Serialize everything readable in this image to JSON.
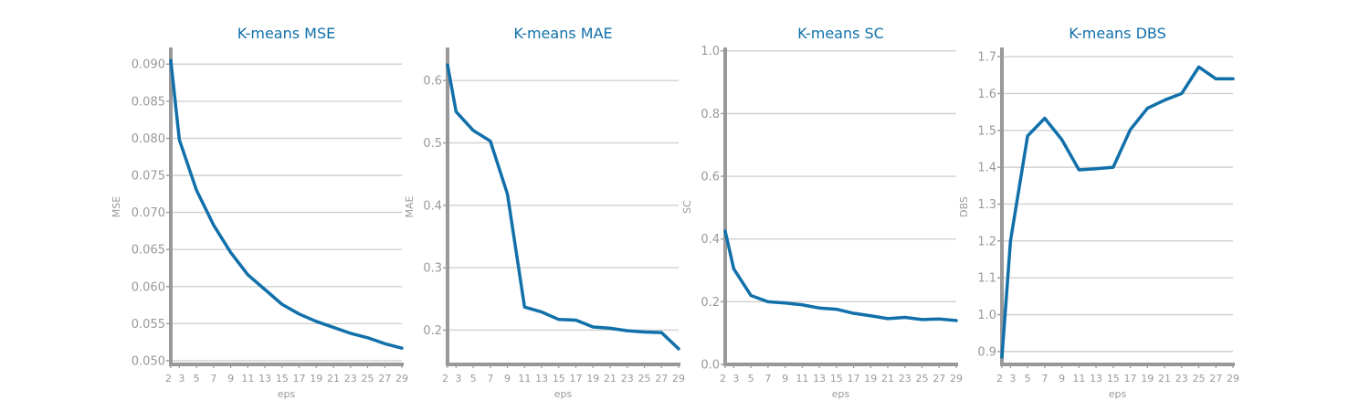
{
  "colors": {
    "line": "#1170aa",
    "title": "#1170aa",
    "axis": "#999999",
    "grid": "#d0d0d0",
    "text": "#999999"
  },
  "chart_data": [
    {
      "type": "line",
      "title": "K-means MSE",
      "xlabel": "eps",
      "ylabel": "MSE",
      "x": [
        2,
        3,
        5,
        7,
        9,
        11,
        13,
        15,
        17,
        19,
        21,
        23,
        25,
        27,
        29
      ],
      "x_ticks": [
        "2",
        "3",
        "5",
        "7",
        "9",
        "11",
        "13",
        "15",
        "17",
        "19",
        "21",
        "23",
        "25",
        "27",
        "29"
      ],
      "y_ticks": [
        "0.050",
        "0.055",
        "0.060",
        "0.065",
        "0.070",
        "0.075",
        "0.080",
        "0.085",
        "0.090"
      ],
      "xlim": [
        2,
        29
      ],
      "ylim": [
        0.0495,
        0.092
      ],
      "grid": true,
      "series": [
        {
          "values": [
            0.0905,
            0.0798,
            0.073,
            0.0683,
            0.0646,
            0.0616,
            0.0596,
            0.0576,
            0.0563,
            0.0553,
            0.0545,
            0.0537,
            0.0531,
            0.0523,
            0.0517
          ]
        }
      ]
    },
    {
      "type": "line",
      "title": "K-means MAE",
      "xlabel": "eps",
      "ylabel": "MAE",
      "x": [
        2,
        3,
        5,
        7,
        9,
        11,
        13,
        15,
        17,
        19,
        21,
        23,
        25,
        27,
        29
      ],
      "x_ticks": [
        "2",
        "3",
        "5",
        "7",
        "9",
        "11",
        "13",
        "15",
        "17",
        "19",
        "21",
        "23",
        "25",
        "27",
        "29"
      ],
      "y_ticks": [
        "0.2",
        "0.3",
        "0.4",
        "0.5",
        "0.6"
      ],
      "xlim": [
        2,
        29
      ],
      "ylim": [
        0.145,
        0.65
      ],
      "grid": true,
      "series": [
        {
          "values": [
            0.625,
            0.55,
            0.52,
            0.503,
            0.418,
            0.237,
            0.229,
            0.217,
            0.216,
            0.205,
            0.203,
            0.199,
            0.197,
            0.196,
            0.17
          ]
        }
      ]
    },
    {
      "type": "line",
      "title": "K-means SC",
      "xlabel": "eps",
      "ylabel": "SC",
      "x": [
        2,
        3,
        5,
        7,
        9,
        11,
        13,
        15,
        17,
        19,
        21,
        23,
        25,
        27,
        29
      ],
      "x_ticks": [
        "2",
        "3",
        "5",
        "7",
        "9",
        "11",
        "13",
        "15",
        "17",
        "19",
        "21",
        "23",
        "25",
        "27",
        "29"
      ],
      "y_ticks": [
        "0.0",
        "0.2",
        "0.4",
        "0.6",
        "0.8",
        "1.0"
      ],
      "xlim": [
        2,
        29
      ],
      "ylim": [
        0.0,
        1.005
      ],
      "grid": true,
      "series": [
        {
          "values": [
            0.425,
            0.305,
            0.22,
            0.2,
            0.196,
            0.19,
            0.18,
            0.176,
            0.163,
            0.155,
            0.146,
            0.15,
            0.143,
            0.145,
            0.14
          ]
        }
      ]
    },
    {
      "type": "line",
      "title": "K-means DBS",
      "xlabel": "eps",
      "ylabel": "DBS",
      "x": [
        2,
        3,
        5,
        7,
        9,
        11,
        13,
        15,
        17,
        19,
        21,
        23,
        25,
        27,
        29
      ],
      "x_ticks": [
        "2",
        "3",
        "5",
        "7",
        "9",
        "11",
        "13",
        "15",
        "17",
        "19",
        "21",
        "23",
        "25",
        "27",
        "29"
      ],
      "y_ticks": [
        "0.9",
        "1.0",
        "1.1",
        "1.2",
        "1.3",
        "1.4",
        "1.5",
        "1.6",
        "1.7"
      ],
      "xlim": [
        2,
        29
      ],
      "ylim": [
        0.865,
        1.72
      ],
      "grid": true,
      "series": [
        {
          "values": [
            0.885,
            1.2,
            1.485,
            1.533,
            1.475,
            1.393,
            1.396,
            1.4,
            1.502,
            1.56,
            1.582,
            1.6,
            1.672,
            1.64,
            1.64
          ]
        }
      ]
    }
  ]
}
